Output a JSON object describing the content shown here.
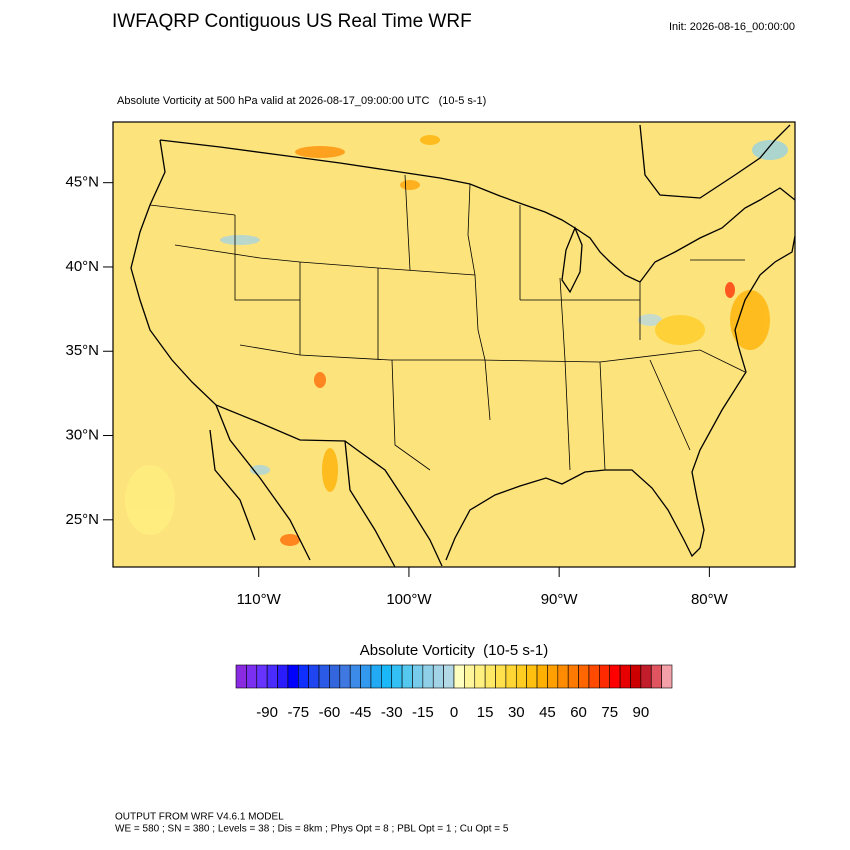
{
  "header": {
    "title": "IWFAQRP Contiguous US Real Time WRF",
    "init": "Init: 2026-08-16_00:00:00"
  },
  "chart_data": {
    "type": "map",
    "subtitle": "Absolute Vorticity at 500 hPa valid at 2026-08-17_09:00:00 UTC   (10-5 s-1)",
    "xlim": [
      -119.7,
      -74.3
    ],
    "ylim": [
      22.2,
      48.6
    ],
    "xticks": [
      {
        "value": -110,
        "label": "110°W"
      },
      {
        "value": -100,
        "label": "100°W"
      },
      {
        "value": -90,
        "label": "90°W"
      },
      {
        "value": -80,
        "label": "80°W"
      }
    ],
    "yticks": [
      {
        "value": 45,
        "label": "45°N"
      },
      {
        "value": 40,
        "label": "40°N"
      },
      {
        "value": 35,
        "label": "35°N"
      },
      {
        "value": 30,
        "label": "30°N"
      },
      {
        "value": 25,
        "label": "25°N"
      }
    ],
    "colorbar": {
      "title": "Absolute Vorticity  (10-5 s-1)",
      "range": [
        -100,
        100
      ],
      "ticks": [
        -90,
        -75,
        -60,
        -45,
        -30,
        -15,
        0,
        15,
        30,
        45,
        60,
        75,
        90
      ],
      "colors": [
        "#8a2be2",
        "#7b2ff0",
        "#6633ff",
        "#4b2cff",
        "#2a1cff",
        "#0000ff",
        "#0f2fff",
        "#1f45f0",
        "#2b5be6",
        "#3366dd",
        "#3f78e0",
        "#3d8be8",
        "#3399ee",
        "#22aaf5",
        "#1ab8f8",
        "#33c0f5",
        "#55c8f0",
        "#77cceb",
        "#8fd0e8",
        "#a3d3e6",
        "#b4d9e6",
        "#ffffc0",
        "#fff59a",
        "#fff080",
        "#ffe866",
        "#ffe04d",
        "#ffd633",
        "#ffcc22",
        "#ffc010",
        "#ffb000",
        "#ff9f00",
        "#ff8c00",
        "#ff7a00",
        "#ff6600",
        "#ff4a00",
        "#ff2a00",
        "#ff0000",
        "#e60000",
        "#cc0000",
        "#c21d2b",
        "#e05560",
        "#f4a0a8"
      ]
    }
  },
  "footer": {
    "line1": "OUTPUT FROM WRF V4.6.1 MODEL",
    "line2": "WE = 580 ; SN = 380 ; Levels = 38 ; Dis = 8km ; Phys Opt = 8 ; PBL Opt = 1 ; Cu Opt = 5"
  }
}
